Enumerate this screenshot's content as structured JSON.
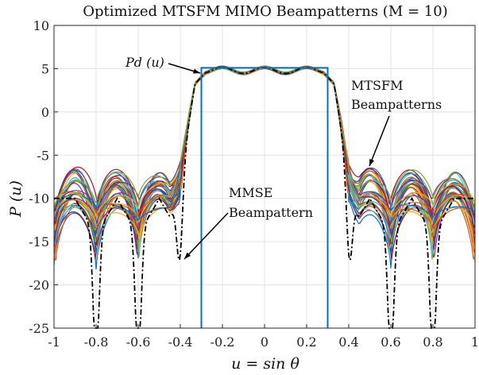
{
  "chart_data": {
    "type": "line",
    "title": "Optimized MTSFM MIMO Beampatterns (M = 10)",
    "xlabel": "u = sin θ",
    "ylabel": "P (u)",
    "xlim": [
      -1,
      1
    ],
    "ylim": [
      -25,
      10
    ],
    "xticks": [
      "-1",
      "-0.8",
      "-0.6",
      "-0.4",
      "-0.2",
      "0",
      "0.2",
      "0.4",
      "0.6",
      "0.8",
      "1"
    ],
    "yticks": [
      "10",
      "5",
      "0",
      "-5",
      "-10",
      "-15",
      "-20",
      "-25"
    ],
    "grid": true,
    "desired_pattern": {
      "label": "Pd (u)",
      "color": "#0072BD",
      "low": -25,
      "high": 5.1,
      "u_start": -0.3,
      "u_end": 0.3
    },
    "mmse_pattern": {
      "label_line1": "MMSE",
      "label_line2": "Beampattern",
      "color": "#000000",
      "mainlobe_level": 5.1,
      "nulls_u": [
        -0.8,
        -0.6,
        -0.4,
        0.4,
        0.6,
        0.8
      ],
      "sidelobe_peak": -10
    },
    "mtsfm_patterns": {
      "label_line1": "MTSFM",
      "label_line2": "Beampatterns",
      "count": 40,
      "colors": [
        "#0072BD",
        "#D95319",
        "#EDB120",
        "#7E2F8E",
        "#77AC30",
        "#4DBEEE",
        "#A2142F"
      ],
      "sidelobe_peak_range": [
        -11,
        -7
      ],
      "trough_range": [
        -17.5,
        -11
      ]
    }
  }
}
